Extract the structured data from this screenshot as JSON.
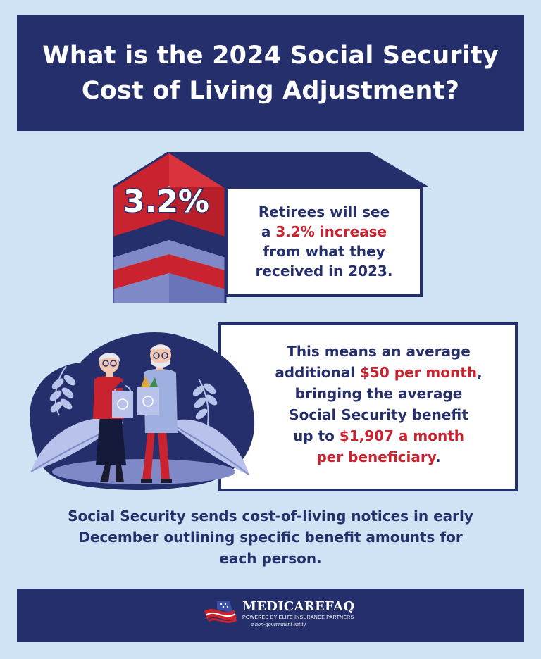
{
  "header": {
    "title_line1": "What is the 2024 Social Security",
    "title_line2": "Cost of Living Adjustment?"
  },
  "increase_section": {
    "percent": "3.2%",
    "text_part1": "Retirees will see",
    "text_part2": "a ",
    "highlight": "3.2% increase",
    "text_part3": "from what they",
    "text_part4": "received in 2023."
  },
  "benefit_section": {
    "line1": "This means an average",
    "line2_prefix": "additional ",
    "highlight1": "$50 per month",
    "line2_suffix": ",",
    "line3": "bringing the average",
    "line4": "Social Security benefit",
    "line5_prefix": "up to ",
    "highlight2": "$1,907 a month",
    "highlight3": "per beneficiary",
    "line6_suffix": "."
  },
  "note": {
    "line1": "Social Security sends cost-of-living notices in early",
    "line2": "December outlining specific benefit amounts for",
    "line3": "each person."
  },
  "footer": {
    "brand_name": "MEDICAREFAQ",
    "tagline": "POWERED BY ELITE INSURANCE PARTNERS",
    "disclaimer": "a non-government entity"
  },
  "colors": {
    "navy": "#252f6b",
    "red": "#c8232f",
    "background": "#cfe3f4",
    "periwinkle": "#7f89c8"
  },
  "icons": [
    "rising-arrow-graphic",
    "seniors-with-recycling-bags-illustration",
    "american-flag-logo-icon"
  ]
}
